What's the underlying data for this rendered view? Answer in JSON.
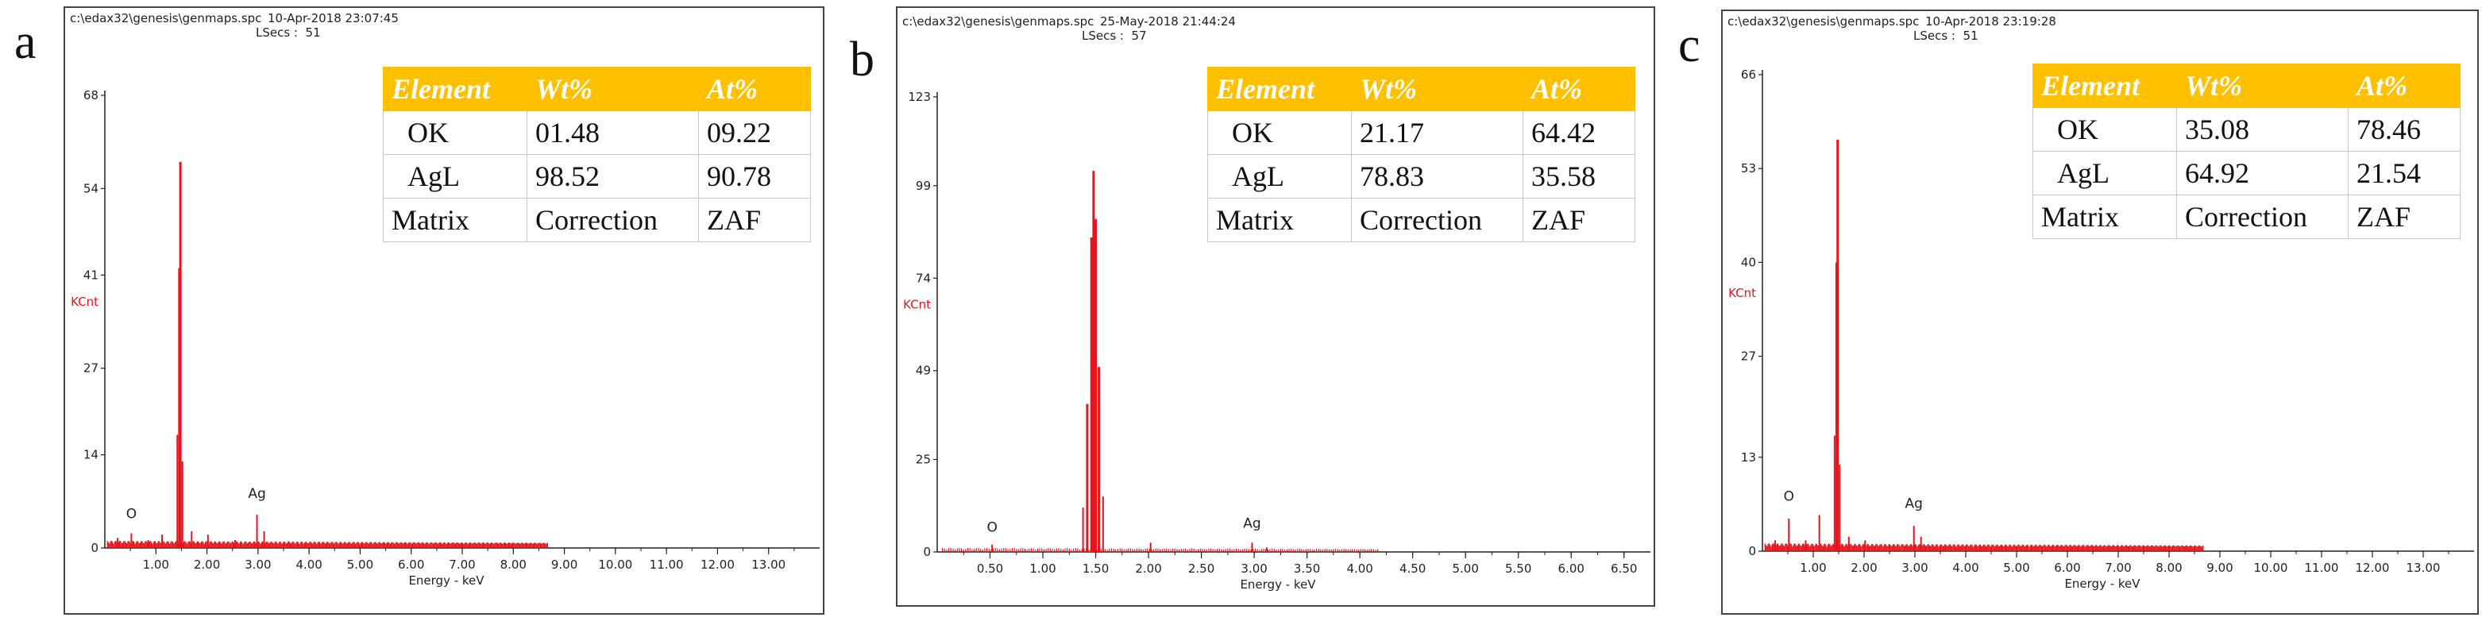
{
  "chart_data": [
    {
      "type": "line",
      "panel_label": "a",
      "header": {
        "file": "c:\\edax32\\genesis\\genmaps.spc",
        "datetime": "10-Apr-2018 23:07:45",
        "lsecs": "LSecs :  51"
      },
      "ylabel": "KCnt",
      "xlabel": "Energy - keV",
      "ylim": [
        0,
        68
      ],
      "xlim": [
        0,
        14
      ],
      "yticks": [
        "0",
        "14",
        "27",
        "41",
        "54",
        "68"
      ],
      "ytick_values": [
        0,
        14,
        27,
        41,
        54,
        68
      ],
      "xticks": [
        "1.00",
        "2.00",
        "3.00",
        "4.00",
        "5.00",
        "6.00",
        "7.00",
        "8.00",
        "9.00",
        "10.00",
        "11.00",
        "12.00",
        "13.00"
      ],
      "xtick_values": [
        1,
        2,
        3,
        4,
        5,
        6,
        7,
        8,
        9,
        10,
        11,
        12,
        13
      ],
      "peaks": [
        {
          "x": 0.25,
          "y": 1.5
        },
        {
          "x": 0.52,
          "y": 2.2
        },
        {
          "x": 0.85,
          "y": 1.2
        },
        {
          "x": 1.12,
          "y": 2.0
        },
        {
          "x": 1.42,
          "y": 17.0
        },
        {
          "x": 1.46,
          "y": 42.0
        },
        {
          "x": 1.48,
          "y": 58.0
        },
        {
          "x": 1.52,
          "y": 13.0
        },
        {
          "x": 1.7,
          "y": 2.5
        },
        {
          "x": 2.02,
          "y": 2.0
        },
        {
          "x": 2.55,
          "y": 1.2
        },
        {
          "x": 2.98,
          "y": 5.0
        },
        {
          "x": 3.12,
          "y": 2.5
        },
        {
          "x": 3.6,
          "y": 1.0
        }
      ],
      "annotations": [
        {
          "text": "O",
          "x": 0.52,
          "y": 4.5
        },
        {
          "text": "Ag",
          "x": 2.98,
          "y": 7.5
        }
      ],
      "table": {
        "headers": [
          "Element",
          "Wt%",
          "At%"
        ],
        "rows": [
          [
            "OK",
            "01.48",
            "09.22"
          ],
          [
            "AgL",
            "98.52",
            "90.78"
          ],
          [
            "Matrix",
            "Correction",
            "ZAF"
          ]
        ]
      }
    },
    {
      "type": "line",
      "panel_label": "b",
      "header": {
        "file": "c:\\edax32\\genesis\\genmaps.spc",
        "datetime": "25-May-2018 21:44:24",
        "lsecs": "LSecs :  57"
      },
      "ylabel": "KCnt",
      "xlabel": "Energy - keV",
      "ylim": [
        0,
        123
      ],
      "xlim": [
        0,
        6.75
      ],
      "yticks": [
        "0",
        "25",
        "49",
        "74",
        "99",
        "123"
      ],
      "ytick_values": [
        0,
        25,
        49,
        74,
        99,
        123
      ],
      "xticks": [
        "0.50",
        "1.00",
        "1.50",
        "2.00",
        "2.50",
        "3.00",
        "3.50",
        "4.00",
        "4.50",
        "5.00",
        "5.50",
        "6.00",
        "6.50"
      ],
      "xtick_values": [
        0.5,
        1.0,
        1.5,
        2.0,
        2.5,
        3.0,
        3.5,
        4.0,
        4.5,
        5.0,
        5.5,
        6.0,
        6.5
      ],
      "peaks": [
        {
          "x": 0.52,
          "y": 2.0
        },
        {
          "x": 1.38,
          "y": 12.0
        },
        {
          "x": 1.42,
          "y": 40.0
        },
        {
          "x": 1.46,
          "y": 85.0
        },
        {
          "x": 1.48,
          "y": 103.0
        },
        {
          "x": 1.5,
          "y": 90.0
        },
        {
          "x": 1.53,
          "y": 50.0
        },
        {
          "x": 1.57,
          "y": 15.0
        },
        {
          "x": 2.02,
          "y": 2.5
        },
        {
          "x": 2.98,
          "y": 2.5
        },
        {
          "x": 3.12,
          "y": 1.2
        }
      ],
      "annotations": [
        {
          "text": "O",
          "x": 0.52,
          "y": 5.5
        },
        {
          "text": "Ag",
          "x": 2.98,
          "y": 6.5
        }
      ],
      "table": {
        "headers": [
          "Element",
          "Wt%",
          "At%"
        ],
        "rows": [
          [
            "OK",
            "21.17",
            "64.42"
          ],
          [
            "AgL",
            "78.83",
            "35.58"
          ],
          [
            "Matrix",
            "Correction",
            "ZAF"
          ]
        ]
      }
    },
    {
      "type": "line",
      "panel_label": "c",
      "header": {
        "file": "c:\\edax32\\genesis\\genmaps.spc",
        "datetime": "10-Apr-2018 23:19:28",
        "lsecs": "LSecs :  51"
      },
      "ylabel": "KCnt",
      "xlabel": "Energy - keV",
      "ylim": [
        0,
        66
      ],
      "xlim": [
        0,
        14
      ],
      "yticks": [
        "0",
        "13",
        "27",
        "40",
        "53",
        "66"
      ],
      "ytick_values": [
        0,
        13,
        27,
        40,
        53,
        66
      ],
      "xticks": [
        "1.00",
        "2.00",
        "3.00",
        "4.00",
        "5.00",
        "6.00",
        "7.00",
        "8.00",
        "9.00",
        "10.00",
        "11.00",
        "12.00",
        "13.00"
      ],
      "xtick_values": [
        1,
        2,
        3,
        4,
        5,
        6,
        7,
        8,
        9,
        10,
        11,
        12,
        13
      ],
      "peaks": [
        {
          "x": 0.25,
          "y": 1.5
        },
        {
          "x": 0.52,
          "y": 4.5
        },
        {
          "x": 0.85,
          "y": 1.5
        },
        {
          "x": 1.12,
          "y": 5.0
        },
        {
          "x": 1.42,
          "y": 16.0
        },
        {
          "x": 1.46,
          "y": 40.0
        },
        {
          "x": 1.48,
          "y": 57.0
        },
        {
          "x": 1.52,
          "y": 12.0
        },
        {
          "x": 1.7,
          "y": 2.0
        },
        {
          "x": 2.02,
          "y": 1.5
        },
        {
          "x": 2.98,
          "y": 3.5
        },
        {
          "x": 3.12,
          "y": 2.0
        }
      ],
      "annotations": [
        {
          "text": "O",
          "x": 0.52,
          "y": 7.0
        },
        {
          "text": "Ag",
          "x": 2.98,
          "y": 6.0
        }
      ],
      "table": {
        "headers": [
          "Element",
          "Wt%",
          "At%"
        ],
        "rows": [
          [
            "OK",
            "35.08",
            "78.46"
          ],
          [
            "AgL",
            "64.92",
            "21.54"
          ],
          [
            "Matrix",
            "Correction",
            "ZAF"
          ]
        ]
      }
    }
  ]
}
